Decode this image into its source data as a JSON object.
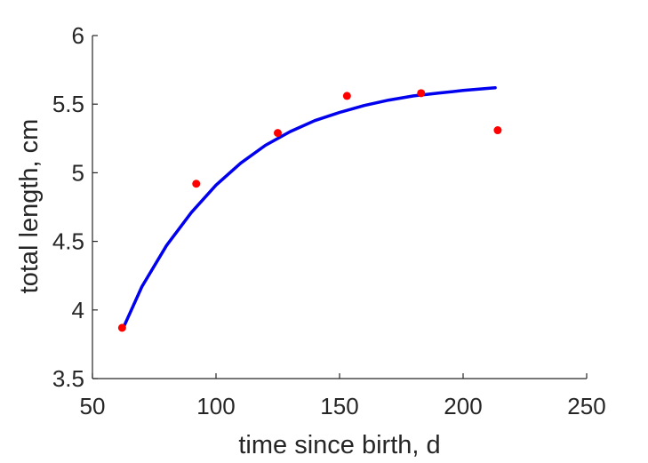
{
  "chart_data": {
    "type": "scatter",
    "title": "",
    "xlabel": "time since birth, d",
    "ylabel": "total length, cm",
    "xlim": [
      50,
      250
    ],
    "ylim": [
      3.5,
      6
    ],
    "xticks": [
      50,
      100,
      150,
      200,
      250
    ],
    "yticks": [
      3.5,
      4,
      4.5,
      5,
      5.5,
      6
    ],
    "xtick_labels": [
      "50",
      "100",
      "150",
      "200",
      "250"
    ],
    "ytick_labels": [
      "3.5",
      "4",
      "4.5",
      "5",
      "5.5",
      "6"
    ],
    "grid": false,
    "legend": "none",
    "series": [
      {
        "kind": "points",
        "color": "#ff0000",
        "x": [
          62,
          92,
          125,
          153,
          183,
          214
        ],
        "y": [
          3.87,
          4.92,
          5.29,
          5.56,
          5.58,
          5.31
        ]
      },
      {
        "kind": "curve",
        "color": "#0000ee",
        "x": [
          63,
          70,
          80,
          90,
          100,
          110,
          120,
          130,
          140,
          150,
          160,
          170,
          180,
          190,
          200,
          213
        ],
        "y": [
          3.89,
          4.17,
          4.47,
          4.71,
          4.91,
          5.07,
          5.2,
          5.3,
          5.38,
          5.44,
          5.49,
          5.53,
          5.56,
          5.58,
          5.6,
          5.62
        ]
      }
    ]
  }
}
